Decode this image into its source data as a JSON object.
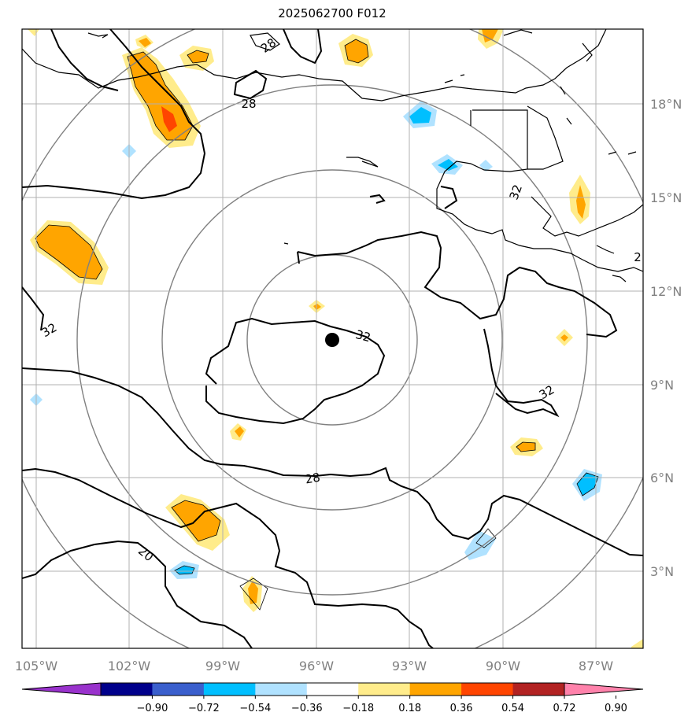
{
  "title": "2025062700 F012",
  "storm_marker": {
    "lat": "10.3°N",
    "lon": "95.5°W"
  },
  "longitude_labels": [
    "105°W",
    "102°W",
    "99°W",
    "96°W",
    "93°W",
    "90°W",
    "87°W"
  ],
  "latitude_labels": [
    "18°N",
    "15°N",
    "12°N",
    "9°N",
    "6°N",
    "3°N"
  ],
  "contour_labels": [
    "28",
    "28",
    "32",
    "32",
    "32",
    "32",
    "28",
    "20",
    "2"
  ],
  "colorbar": {
    "ticks": [
      "−0.90",
      "−0.72",
      "−0.54",
      "−0.36",
      "−0.18",
      "0.18",
      "0.36",
      "0.54",
      "0.72",
      "0.90"
    ],
    "colors": [
      "#9932cc",
      "#00008b",
      "#3a5fcd",
      "#00bfff",
      "#b0e2ff",
      "#ffffff",
      "#ffec8b",
      "#ffa500",
      "#ff4500",
      "#b22222",
      "#ff82ab"
    ]
  }
}
